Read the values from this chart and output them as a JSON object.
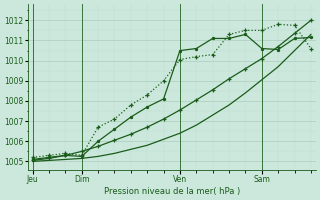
{
  "bg_color": "#cce8dc",
  "grid_color_major": "#aaccbb",
  "grid_color_minor": "#bbddd0",
  "line_color": "#1a5c1a",
  "xlabel": "Pression niveau de la mer( hPa )",
  "xlabel_color": "#1a5c1a",
  "yticks": [
    1005,
    1006,
    1007,
    1008,
    1009,
    1010,
    1011,
    1012
  ],
  "ylim": [
    1004.6,
    1012.8
  ],
  "xlim": [
    -0.3,
    17.3
  ],
  "day_labels": [
    "Jeu",
    "Dim",
    "Ven",
    "Sam"
  ],
  "day_positions": [
    0.0,
    3.0,
    9.0,
    14.0
  ],
  "total_points": 18,
  "series1_x": [
    0,
    1,
    2,
    3,
    4,
    5,
    6,
    7,
    8,
    9,
    10,
    11,
    12,
    13,
    14,
    15,
    16,
    17
  ],
  "series1_y": [
    1005.2,
    1005.3,
    1005.4,
    1005.3,
    1006.7,
    1007.1,
    1007.8,
    1008.3,
    1009.0,
    1010.05,
    1010.2,
    1010.3,
    1011.3,
    1011.5,
    1011.5,
    1011.8,
    1011.75,
    1010.6
  ],
  "series2_x": [
    0,
    1,
    2,
    3,
    4,
    5,
    6,
    7,
    8,
    9,
    10,
    11,
    12,
    13,
    14,
    15,
    16,
    17
  ],
  "series2_y": [
    1005.1,
    1005.2,
    1005.3,
    1005.25,
    1006.0,
    1006.6,
    1007.2,
    1007.7,
    1008.1,
    1010.5,
    1010.6,
    1011.1,
    1011.1,
    1011.3,
    1010.6,
    1010.55,
    1011.1,
    1011.15
  ],
  "series3_x": [
    0,
    1,
    2,
    3,
    4,
    5,
    6,
    7,
    8,
    9,
    10,
    11,
    12,
    13,
    14,
    15,
    16,
    17
  ],
  "series3_y": [
    1005.05,
    1005.15,
    1005.3,
    1005.5,
    1005.75,
    1006.05,
    1006.35,
    1006.7,
    1007.1,
    1007.55,
    1008.05,
    1008.55,
    1009.1,
    1009.6,
    1010.1,
    1010.7,
    1011.35,
    1012.0
  ],
  "series4_x": [
    0,
    1,
    2,
    3,
    4,
    5,
    6,
    7,
    8,
    9,
    10,
    11,
    12,
    13,
    14,
    15,
    16,
    17
  ],
  "series4_y": [
    1005.0,
    1005.05,
    1005.1,
    1005.15,
    1005.25,
    1005.4,
    1005.6,
    1005.8,
    1006.1,
    1006.4,
    1006.8,
    1007.3,
    1007.8,
    1008.4,
    1009.05,
    1009.7,
    1010.5,
    1011.3
  ]
}
